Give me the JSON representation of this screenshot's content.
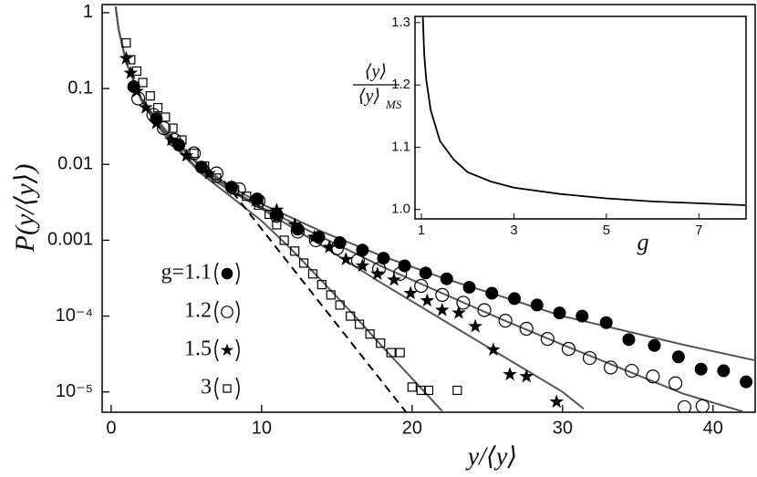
{
  "chart_data": [
    {
      "type": "scatter",
      "xlabel": "y/⟨y⟩",
      "ylabel": "P(y/⟨y⟩)",
      "yscale": "log",
      "legend": "lower left",
      "xlim": [
        -0.6,
        42.8
      ],
      "ylim": [
        5.4e-06,
        1.28
      ],
      "xticks": [
        0,
        10,
        20,
        30,
        40
      ],
      "yticks": [
        {
          "value": 1,
          "label": "1"
        },
        0.1,
        0.01,
        0.001,
        {
          "value": 0.0001,
          "label": "10⁻⁴"
        },
        {
          "value": 1e-05,
          "label": "10⁻⁵"
        }
      ],
      "series": [
        {
          "name": "g=1.1",
          "marker": "filled-circle",
          "color": "#000",
          "x": [
            1.5,
            3.0,
            4.5,
            6.0,
            8.0,
            9.7,
            11.0,
            12.4,
            13.8,
            15.2,
            16.7,
            18.1,
            19.5,
            20.9,
            22.3,
            23.8,
            25.3,
            26.8,
            28.3,
            29.8,
            31.3,
            32.9,
            34.4,
            36.1,
            37.7,
            39.2,
            40.7,
            42.2
          ],
          "values": [
            0.106,
            0.04,
            0.018,
            0.0092,
            0.005,
            0.0035,
            0.0022,
            0.0014,
            0.0011,
            0.00093,
            0.00074,
            0.00058,
            0.00046,
            0.00037,
            0.00031,
            0.00024,
            0.0002,
            0.00017,
            0.00014,
            0.00011,
            0.0001,
            8.2e-05,
            4.9e-05,
            4.1e-05,
            2.9e-05,
            2e-05,
            1.9e-05,
            1.36e-05
          ]
        },
        {
          "name": "1.2",
          "marker": "circle",
          "color": "#000",
          "x": [
            1.8,
            2.8,
            3.5,
            4.2,
            5.5,
            7.0,
            8.5,
            9.8,
            11.0,
            12.4,
            13.6,
            15.0,
            16.4,
            17.8,
            19.2,
            20.6,
            22.0,
            23.4,
            24.8,
            26.2,
            27.6,
            29.0,
            30.4,
            31.8,
            33.2,
            34.6,
            36.0,
            37.5,
            38.1,
            39.3
          ],
          "values": [
            0.074,
            0.045,
            0.03,
            0.021,
            0.014,
            0.0076,
            0.0047,
            0.0033,
            0.0021,
            0.0013,
            0.001,
            0.00078,
            0.00054,
            0.00042,
            0.00036,
            0.00025,
            0.00019,
            0.00015,
            0.00012,
            8.7e-05,
            6.8e-05,
            5e-05,
            3.7e-05,
            2.8e-05,
            2.1e-05,
            1.9e-05,
            1.6e-05,
            1.3e-05,
            6.3e-06,
            6.5e-06
          ]
        },
        {
          "name": "1.5",
          "marker": "star",
          "color": "#000",
          "x": [
            1.0,
            1.3,
            1.7,
            2.3,
            3.0,
            4.0,
            5.0,
            6.5,
            8.0,
            9.6,
            11.0,
            12.2,
            13.5,
            14.5,
            15.6,
            16.7,
            17.7,
            18.8,
            19.9,
            21.0,
            22.0,
            23.1,
            24.2,
            25.4,
            26.5,
            27.6,
            29.6
          ],
          "values": [
            0.25,
            0.16,
            0.092,
            0.056,
            0.035,
            0.021,
            0.013,
            0.0076,
            0.005,
            0.0033,
            0.0025,
            0.0016,
            0.0011,
            0.00081,
            0.00056,
            0.00046,
            0.00036,
            0.0003,
            0.0002,
            0.00016,
            0.00012,
            0.00011,
            7.3e-05,
            3.6e-05,
            1.7e-05,
            1.6e-05,
            7.4e-06
          ]
        },
        {
          "name": "3",
          "marker": "square",
          "color": "#000",
          "x": [
            1.0,
            1.3,
            1.7,
            2.1,
            2.6,
            3.1,
            3.6,
            4.1,
            4.7,
            5.5,
            6.2,
            7.0,
            8.2,
            9.0,
            9.8,
            10.5,
            11.0,
            11.5,
            12.2,
            12.8,
            13.4,
            14.0,
            14.6,
            15.2,
            15.9,
            16.5,
            17.2,
            17.9,
            18.6,
            19.2,
            20.0,
            20.6,
            21.1,
            23.0
          ],
          "values": [
            0.4,
            0.24,
            0.17,
            0.12,
            0.08,
            0.056,
            0.042,
            0.03,
            0.021,
            0.014,
            0.0095,
            0.0066,
            0.0046,
            0.0038,
            0.0029,
            0.0022,
            0.0016,
            0.001,
            0.00072,
            0.0005,
            0.00036,
            0.00026,
            0.00019,
            0.00014,
            0.0001,
            7.8e-05,
            5.8e-05,
            4.4e-05,
            3.3e-05,
            3.3e-05,
            1.16e-05,
            1.05e-05,
            1.05e-05,
            1.05e-05
          ]
        }
      ],
      "curves": [
        {
          "color": "#555",
          "x": [
            0.3,
            0.5,
            1,
            2,
            3,
            4,
            6,
            8,
            10,
            14,
            18,
            22,
            26,
            30,
            34,
            38,
            42.8
          ],
          "values": [
            1.2,
            0.6,
            0.22,
            0.075,
            0.04,
            0.023,
            0.0095,
            0.005,
            0.003,
            0.0013,
            0.00062,
            0.00032,
            0.00018,
            0.0001,
            6.5e-05,
            4.2e-05,
            2.6e-05
          ]
        },
        {
          "color": "#555",
          "x": [
            0.3,
            0.5,
            1,
            2,
            3,
            4,
            6,
            8,
            10,
            14,
            18,
            22,
            26,
            30,
            34,
            38,
            42
          ],
          "values": [
            1.2,
            0.6,
            0.22,
            0.072,
            0.037,
            0.022,
            0.009,
            0.0046,
            0.0027,
            0.0011,
            0.00045,
            0.0002,
            9e-05,
            4.2e-05,
            2e-05,
            9.5e-06,
            5.5e-06
          ]
        },
        {
          "color": "#555",
          "x": [
            0.3,
            0.5,
            1,
            2,
            3,
            4,
            6,
            8,
            10,
            14,
            18,
            22,
            26,
            30,
            31.4
          ],
          "values": [
            1.2,
            0.6,
            0.22,
            0.07,
            0.035,
            0.02,
            0.0078,
            0.0044,
            0.0026,
            0.00085,
            0.00027,
            9e-05,
            3e-05,
            1e-05,
            6e-06
          ]
        },
        {
          "color": "#555",
          "x": [
            0.3,
            0.5,
            1,
            2,
            3,
            4,
            6,
            8,
            10,
            12,
            14,
            16,
            18,
            20,
            22
          ],
          "values": [
            1.2,
            0.6,
            0.22,
            0.07,
            0.034,
            0.019,
            0.0075,
            0.0037,
            0.0018,
            0.00075,
            0.00029,
            0.00011,
            4e-05,
            1.5e-05,
            5.6e-06
          ]
        }
      ],
      "dashed_line": {
        "color": "#000",
        "x": [
          7.5,
          19.6
        ],
        "values": [
          0.006,
          5.4e-06
        ]
      }
    },
    {
      "type": "line",
      "xlabel": "g",
      "ylabel": {
        "numerator": "⟨y⟩",
        "denominator": "⟨y⟩",
        "subscript": "MS"
      },
      "xlim": [
        0.86,
        8.02
      ],
      "ylim": [
        0.985,
        1.31
      ],
      "xticks": [
        1,
        3,
        5,
        7
      ],
      "yticks": [
        {
          "value": 1.0,
          "label": "1.0"
        },
        1.1,
        1.2,
        1.3
      ],
      "color": "#000",
      "x": [
        1.03,
        1.06,
        1.1,
        1.2,
        1.4,
        1.7,
        2,
        2.5,
        3,
        4,
        5,
        6,
        7,
        8
      ],
      "values": [
        1.31,
        1.25,
        1.21,
        1.16,
        1.11,
        1.08,
        1.06,
        1.045,
        1.035,
        1.025,
        1.018,
        1.013,
        1.01,
        1.007
      ]
    }
  ]
}
